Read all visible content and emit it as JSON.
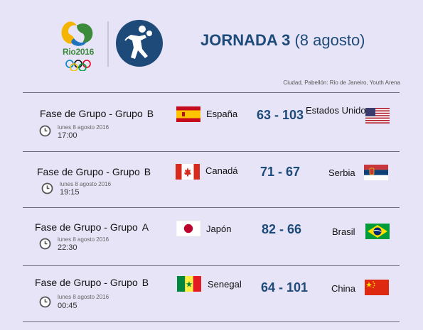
{
  "header": {
    "logo_text": "Rio2016",
    "title_bold": "JORNADA 3",
    "title_light": "(8 agosto)",
    "venue": "Ciudad, Pabellón: Rio de Janeiro, Youth Arena"
  },
  "matches": [
    {
      "phase": "Fase de Grupo - Grupo",
      "group": "B",
      "date": "lunes 8 agosto 2016",
      "time": "17:00",
      "home": "España",
      "home_flag": "spain-flag",
      "score": "63 - 103",
      "away": "Estados Unidos",
      "away_flag": "usa-flag"
    },
    {
      "phase": "Fase de Grupo - Grupo",
      "group": "B",
      "date": "lunes 8 agosto 2016",
      "time": "19:15",
      "home": "Canadá",
      "home_flag": "canada-flag",
      "score": "71 - 67",
      "away": "Serbia",
      "away_flag": "serbia-flag"
    },
    {
      "phase": "Fase de Grupo - Grupo",
      "group": "A",
      "date": "lunes 8 agosto 2016",
      "time": "22:30",
      "home": "Japón",
      "home_flag": "japan-flag",
      "score": "82 - 66",
      "away": "Brasil",
      "away_flag": "brazil-flag"
    },
    {
      "phase": "Fase de Grupo - Grupo",
      "group": "B",
      "date": "lunes 8 agosto 2016",
      "time": "00:45",
      "home": "Senegal",
      "home_flag": "senegal-flag",
      "score": "64 - 101",
      "away": "China",
      "away_flag": "china-flag"
    }
  ],
  "colors": {
    "background": "#e6e4f6",
    "title": "#1e4a7a",
    "score": "#1e4a7a"
  }
}
